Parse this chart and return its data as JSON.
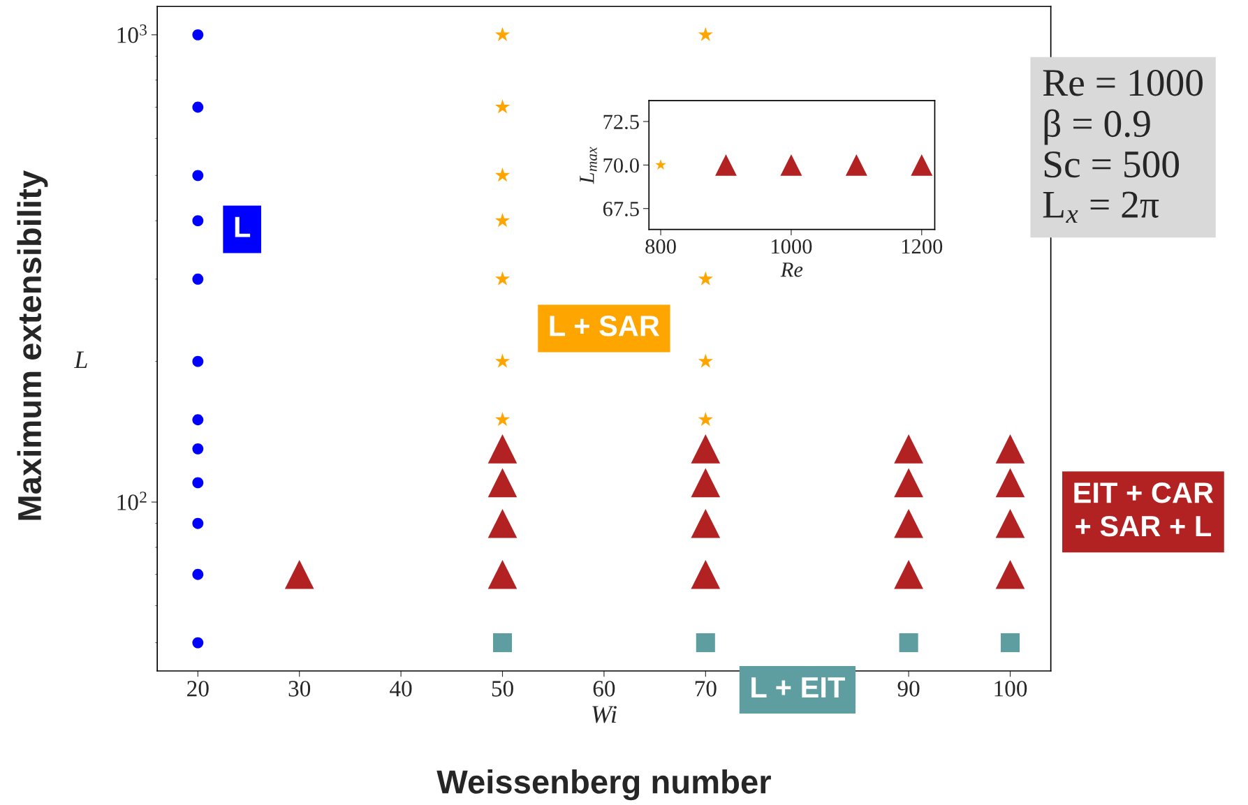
{
  "chart_data": [
    {
      "type": "scatter",
      "xlabel": "Wi",
      "ylabel": "L",
      "log": "y",
      "xlim": [
        16,
        104
      ],
      "xticks": [
        20,
        30,
        40,
        50,
        60,
        70,
        {
          "value": 80,
          "label": null
        },
        90,
        100
      ],
      "ylim": [
        43.5,
        1150
      ],
      "yticks": [
        {
          "value": 100,
          "label": "10$^{2}$"
        },
        {
          "value": 1000,
          "label": "10$^{3}$"
        }
      ],
      "grid": false,
      "series": [
        {
          "name": "L",
          "color": "#0000ff",
          "marker": "circle",
          "x": [
            20,
            20,
            20,
            20,
            20,
            20,
            20,
            20,
            20,
            20,
            20,
            20
          ],
          "values": [
            1000,
            700,
            500,
            400,
            300,
            200,
            150,
            130,
            110,
            90,
            70,
            50
          ]
        },
        {
          "name": "L + SAR",
          "color": "#ffa500",
          "marker": "star",
          "x": [
            50,
            50,
            50,
            50,
            50,
            50,
            50,
            70,
            70,
            70,
            70
          ],
          "values": [
            1000,
            700,
            500,
            400,
            300,
            200,
            150,
            1000,
            300,
            200,
            150
          ]
        },
        {
          "name": "EIT + CAR\n+ SAR + L",
          "color": "#b22222",
          "marker": "triangle",
          "x": [
            30,
            50,
            50,
            50,
            50,
            70,
            70,
            70,
            70,
            90,
            90,
            90,
            90,
            100,
            100,
            100,
            100
          ],
          "values": [
            70,
            130,
            110,
            90,
            70,
            130,
            110,
            90,
            70,
            130,
            110,
            90,
            70,
            130,
            110,
            90,
            70
          ]
        },
        {
          "name": "L + EIT",
          "color": "#5f9ea0",
          "marker": "square",
          "x": [
            50,
            70,
            90,
            100
          ],
          "values": [
            50,
            50,
            50,
            50
          ]
        }
      ],
      "annotations": [
        "Re = 1000\nβ = 0.9\nSc = 500\nL$_{x}$ = 2π",
        "Weissenberg number",
        "Maximum extensibility"
      ]
    },
    {
      "type": "scatter",
      "xlabel": "Re",
      "ylabel": "L$_{max}$",
      "xlim": [
        782,
        1220
      ],
      "xticks": [
        800,
        1000,
        1200
      ],
      "ylim": [
        66.3,
        73.7
      ],
      "yticks": [
        67.5,
        {
          "value": 70,
          "label": "70.0"
        },
        72.5
      ],
      "grid": false,
      "series": [
        {
          "color": "#ffa500",
          "marker": "star",
          "x": [
            800
          ],
          "values": [
            70.0
          ]
        },
        {
          "color": "#b22222",
          "marker": "triangle",
          "x": [
            900,
            1000,
            1100,
            1200
          ],
          "values": [
            70.0,
            70.0,
            70.0,
            70.0
          ]
        }
      ]
    }
  ]
}
